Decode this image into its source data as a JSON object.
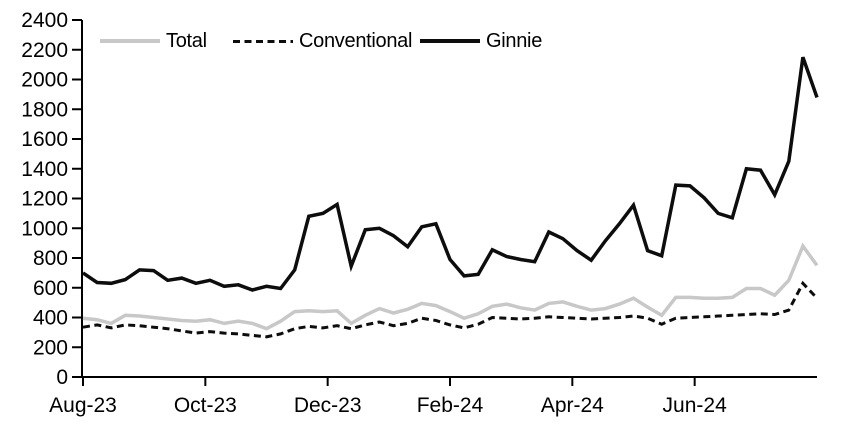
{
  "chart_data": {
    "type": "line",
    "title": "",
    "x_tick_labels": [
      "Aug-23",
      "Oct-23",
      "Dec-23",
      "Feb-24",
      "Apr-24",
      "Jun-24"
    ],
    "x_tick_months": [
      0,
      2,
      4,
      6,
      8,
      10
    ],
    "x_span_months": 12,
    "x_unit": "weekly points from Aug-23 to Aug-24",
    "n_points": 53,
    "ylim": [
      0,
      2400
    ],
    "y_ticks": [
      0,
      200,
      400,
      600,
      800,
      1000,
      1200,
      1400,
      1600,
      1800,
      2000,
      2200,
      2400
    ],
    "grid": false,
    "legend_position": "top-inside",
    "background_color": "#ffffff",
    "axis_color": "#000000",
    "series": [
      {
        "name": "Total",
        "color": "#c8c8c8",
        "line_style": "solid",
        "values": [
          395,
          385,
          360,
          415,
          410,
          400,
          390,
          380,
          375,
          385,
          360,
          375,
          360,
          325,
          375,
          440,
          445,
          440,
          445,
          360,
          415,
          460,
          430,
          455,
          495,
          480,
          440,
          395,
          425,
          475,
          490,
          465,
          450,
          495,
          505,
          475,
          450,
          460,
          490,
          530,
          470,
          415,
          535,
          535,
          530,
          530,
          535,
          595,
          595,
          550,
          650,
          880,
          750
        ]
      },
      {
        "name": "Conventional",
        "color": "#0d0d0d",
        "line_style": "dashed",
        "values": [
          335,
          350,
          330,
          350,
          345,
          335,
          325,
          310,
          295,
          305,
          295,
          290,
          280,
          270,
          290,
          325,
          340,
          330,
          345,
          325,
          350,
          370,
          345,
          360,
          395,
          380,
          350,
          330,
          355,
          400,
          395,
          390,
          395,
          405,
          400,
          395,
          390,
          395,
          400,
          410,
          395,
          355,
          395,
          400,
          405,
          410,
          415,
          420,
          425,
          420,
          450,
          630,
          530
        ]
      },
      {
        "name": "Ginnie",
        "color": "#0d0d0d",
        "line_style": "solid",
        "values": [
          700,
          635,
          630,
          655,
          720,
          715,
          650,
          665,
          630,
          650,
          610,
          620,
          585,
          610,
          595,
          720,
          1080,
          1100,
          1160,
          745,
          990,
          1000,
          950,
          875,
          1010,
          1030,
          790,
          680,
          690,
          855,
          810,
          790,
          775,
          975,
          930,
          850,
          785,
          915,
          1030,
          1155,
          850,
          815,
          1290,
          1285,
          1205,
          1100,
          1070,
          1400,
          1390,
          1225,
          1450,
          2150,
          1880
        ]
      }
    ]
  }
}
